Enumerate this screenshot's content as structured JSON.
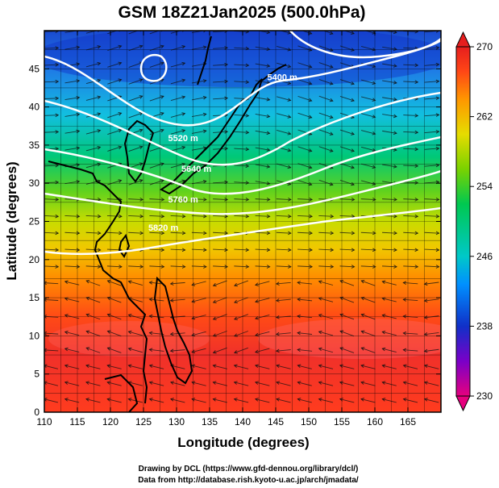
{
  "title": "GSM 18Z21Jan2025 (500.0hPa)",
  "x_axis": {
    "label": "Longitude (degrees)",
    "ticks": [
      "110",
      "115",
      "120",
      "125",
      "130",
      "135",
      "140",
      "145",
      "150",
      "155",
      "160",
      "165"
    ],
    "range": [
      110,
      170
    ]
  },
  "y_axis": {
    "label": "Latitude  (degrees)",
    "ticks": [
      "0",
      "5",
      "10",
      "15",
      "20",
      "25",
      "30",
      "35",
      "40",
      "45"
    ],
    "range": [
      0,
      50
    ]
  },
  "colorbar": {
    "ticks": [
      "230",
      "238",
      "246",
      "254",
      "262",
      "270"
    ],
    "range": [
      230,
      270
    ],
    "colors": [
      "#e6007e",
      "#7a00c8",
      "#1030c8",
      "#0090ff",
      "#00c8c8",
      "#00c850",
      "#7ad200",
      "#e6dc00",
      "#ff9600",
      "#ff4616",
      "#e61e1e"
    ]
  },
  "contour_labels": [
    {
      "text": "5400 m",
      "lon": 146,
      "lat": 43.5
    },
    {
      "text": "5520 m",
      "lon": 131,
      "lat": 35.5
    },
    {
      "text": "5640 m",
      "lon": 133,
      "lat": 31.5
    },
    {
      "text": "5760 m",
      "lon": 131,
      "lat": 27.5
    },
    {
      "text": "5820 m",
      "lon": 128,
      "lat": 23.8
    }
  ],
  "credits": {
    "line1": "Drawing by DCL (https://www.gfd-dennou.org/library/dcl/)",
    "line2": "Data from http://database.rish.kyoto-u.ac.jp/arch/jmadata/"
  }
}
